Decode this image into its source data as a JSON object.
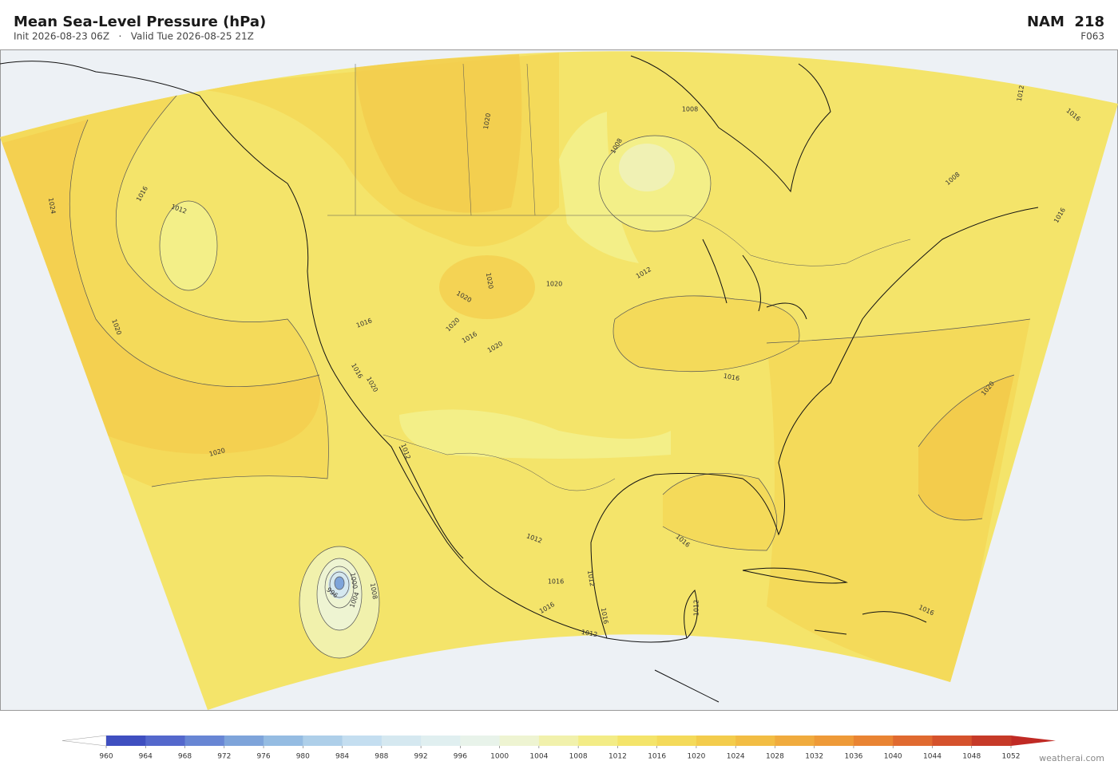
{
  "header": {
    "title": "Mean Sea-Level Pressure  (hPa)",
    "subtitle": "Init 2026-08-23 06Z   ·   Valid Tue 2026-08-25 21Z",
    "model": "NAM  218",
    "forecast_hour": "F063"
  },
  "map": {
    "contour_labels": [
      1024,
      1016,
      1012,
      1020,
      1020,
      1020,
      1020,
      1020,
      1020,
      1016,
      1016,
      1020,
      1016,
      1020,
      1012,
      1012,
      1016,
      1016,
      1012,
      1012,
      1016,
      1016,
      1012,
      1016,
      1020,
      1016,
      1012,
      1008,
      1008,
      1008,
      1012,
      1016,
      1016,
      1020,
      1000,
      1004,
      1008,
      996
    ]
  },
  "colorbar": {
    "ticks": [
      960,
      964,
      968,
      972,
      976,
      980,
      984,
      988,
      992,
      996,
      1000,
      1004,
      1008,
      1012,
      1016,
      1020,
      1024,
      1028,
      1032,
      1036,
      1040,
      1044,
      1048,
      1052
    ],
    "colors": [
      "#3f4fc0",
      "#5468cc",
      "#6886d4",
      "#7ea4da",
      "#95bce2",
      "#aecfe9",
      "#c4def0",
      "#d5e8f0",
      "#e0eff0",
      "#e8f3ea",
      "#eef4d2",
      "#f1f1ac",
      "#f3ec86",
      "#f4e46a",
      "#f4da5a",
      "#f3cc4c",
      "#f2bd44",
      "#f0ab3e",
      "#ee9a38",
      "#e98433",
      "#e06a30",
      "#d5522c",
      "#c63a28"
    ],
    "under_color": "#ffffff",
    "over_color": "#c02a24"
  },
  "footer": {
    "credit": "weatherai.com"
  }
}
